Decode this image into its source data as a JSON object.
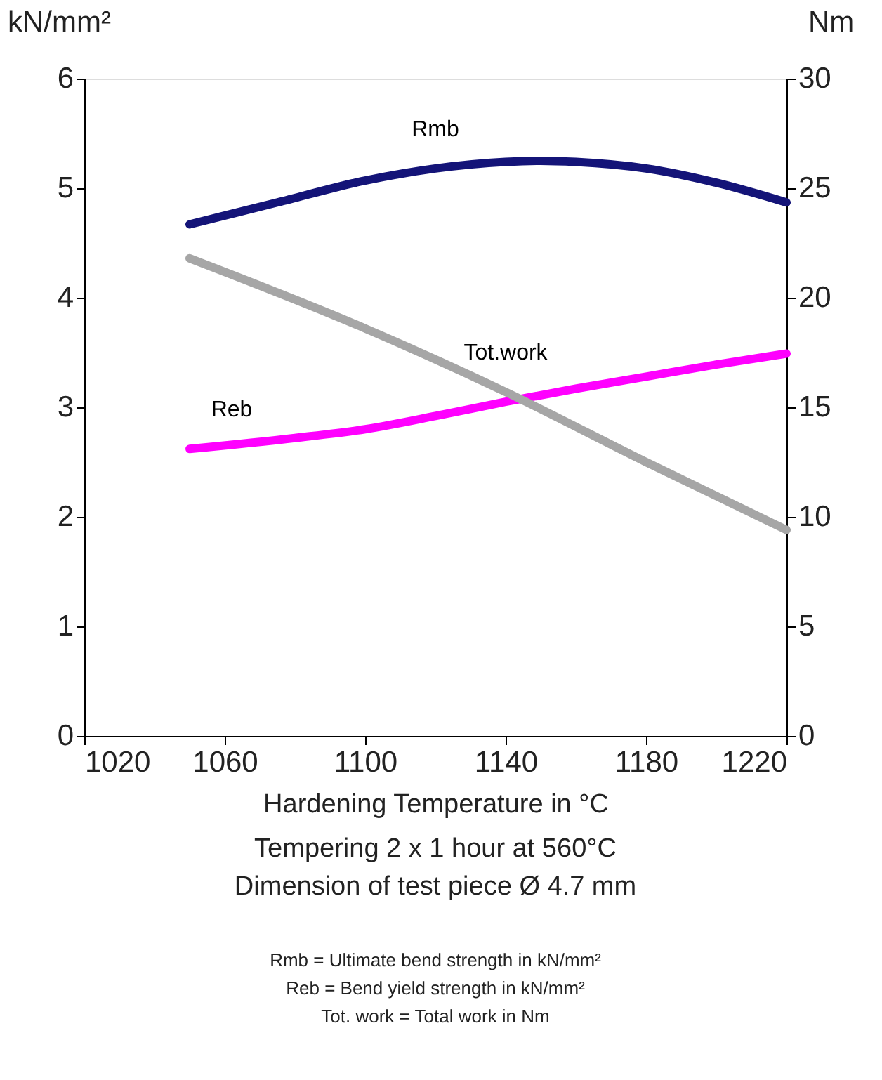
{
  "chart_data": {
    "type": "line",
    "xlabel": "Hardening Temperature in °C",
    "ylabel": "kN/mm²",
    "y2label": "Nm",
    "xlim": [
      1020,
      1220
    ],
    "xticks": [
      1020,
      1060,
      1100,
      1140,
      1180,
      1220
    ],
    "ylim": [
      0,
      6
    ],
    "yticks": [
      0,
      1,
      2,
      3,
      4,
      5,
      6
    ],
    "y2lim": [
      0,
      30
    ],
    "y2ticks": [
      0,
      5,
      10,
      15,
      20,
      25,
      30
    ],
    "grid": false,
    "legend": false,
    "marker": "none",
    "line_style": "solid",
    "annotations": [
      "Tempering 2 x 1 hour at 560°C",
      "Dimension of test piece Ø 4.7 mm",
      "Rmb = Ultimate bend strength in kN/mm²",
      "Reb =   Bend yield strength in kN/mm²",
      "Tot. work = Total work in Nm"
    ],
    "series": [
      {
        "name": "Rmb",
        "color": "#141478",
        "x": [
          1050,
          1075,
          1100,
          1120,
          1140,
          1150,
          1160,
          1180,
          1200,
          1220
        ],
        "values": [
          4.67,
          4.87,
          5.07,
          5.18,
          5.24,
          5.25,
          5.24,
          5.18,
          5.05,
          4.87
        ]
      },
      {
        "name": "Reb",
        "color": "#ff00ff",
        "x": [
          1050,
          1080,
          1100,
          1120,
          1140,
          1160,
          1180,
          1200,
          1220
        ],
        "values": [
          2.62,
          2.72,
          2.8,
          2.92,
          3.05,
          3.17,
          3.28,
          3.39,
          3.49
        ]
      },
      {
        "name": "Tot.work",
        "color": "#a6a6a6",
        "axis": "y2",
        "x": [
          1050,
          1100,
          1140,
          1180,
          1220
        ],
        "values": [
          21.8,
          18.6,
          15.7,
          12.5,
          9.4
        ]
      }
    ]
  }
}
